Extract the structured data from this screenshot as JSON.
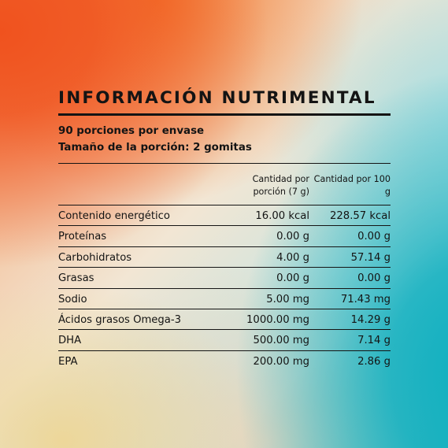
{
  "title": "INFORMACIÓN NUTRIMENTAL",
  "servings": "90 porciones por envase",
  "serving_size": "Tamaño de la porción: 2 gomitas",
  "columns": {
    "per_serving": "Cantidad por porción (7 g)",
    "per_100g": "Cantidad por 100 g"
  },
  "rows": [
    {
      "name": "Contenido energético",
      "per_serving": "16.00 kcal",
      "per_100g": "228.57 kcal"
    },
    {
      "name": "Proteínas",
      "per_serving": "0.00 g",
      "per_100g": "0.00 g"
    },
    {
      "name": "Carbohidratos",
      "per_serving": "4.00 g",
      "per_100g": "57.14 g"
    },
    {
      "name": "Grasas",
      "per_serving": "0.00 g",
      "per_100g": "0.00 g"
    },
    {
      "name": "Sodio",
      "per_serving": "5.00 mg",
      "per_100g": "71.43 mg"
    },
    {
      "name": "Ácidos grasos Omega-3",
      "per_serving": "1000.00 mg",
      "per_100g": "14.29 g"
    },
    {
      "name": "DHA",
      "per_serving": "500.00 mg",
      "per_100g": "7.14 g"
    },
    {
      "name": "EPA",
      "per_serving": "200.00 mg",
      "per_100g": "2.86 g"
    }
  ]
}
